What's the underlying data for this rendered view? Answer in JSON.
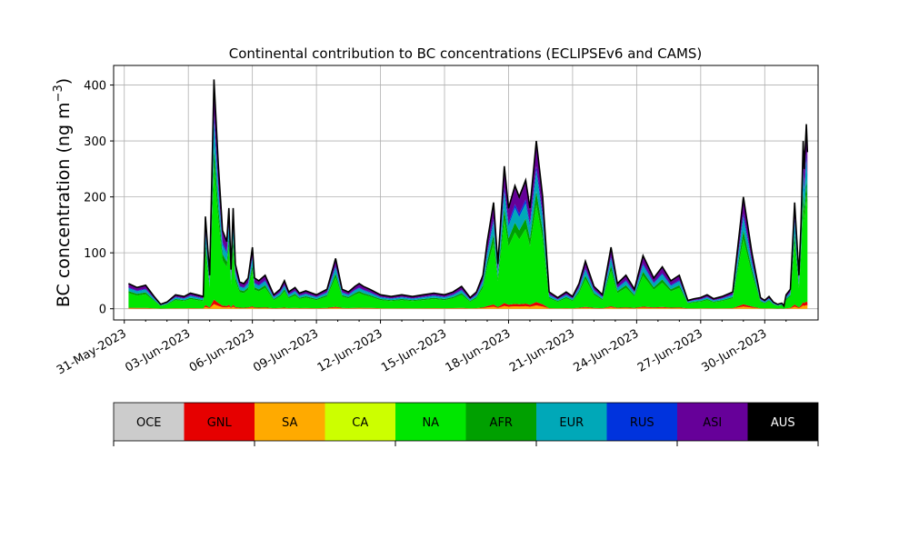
{
  "chart_data": {
    "type": "area",
    "title": "Continental contribution to BC concentrations (ECLIPSEv6 and CAMS)",
    "xlabel": "",
    "ylabel": "BC concentration (ng m",
    "ylabel_unit_exponent": "−3",
    "ylabel_close": ")",
    "ylim": [
      -20,
      435
    ],
    "yticks": [
      0,
      100,
      200,
      300,
      400
    ],
    "xlim_days": [
      -0.5,
      32.5
    ],
    "xtick_labels": [
      "31-May-2023",
      "03-Jun-2023",
      "06-Jun-2023",
      "09-Jun-2023",
      "12-Jun-2023",
      "15-Jun-2023",
      "18-Jun-2023",
      "21-Jun-2023",
      "24-Jun-2023",
      "27-Jun-2023",
      "30-Jun-2023"
    ],
    "grid": true,
    "stack_order": [
      "SA",
      "GNL",
      "NA",
      "AFR",
      "EUR",
      "RUS",
      "ASI",
      "AUS"
    ],
    "x": [
      "01-Jun",
      "02-Jun",
      "03-Jun",
      "04-Jun",
      "05-Jun",
      "06-Jun",
      "07-Jun",
      "08-Jun",
      "09-Jun",
      "10-Jun",
      "11-Jun",
      "12-Jun",
      "13-Jun",
      "14-Jun",
      "15-Jun",
      "16-Jun",
      "17-Jun",
      "18-Jun",
      "19-Jun",
      "20-Jun",
      "21-Jun",
      "22-Jun",
      "23-Jun",
      "24-Jun",
      "25-Jun",
      "26-Jun",
      "27-Jun",
      "28-Jun",
      "29-Jun",
      "30-Jun",
      "01-Jul",
      "02-Jul"
    ],
    "total_x_days": [
      0.2,
      0.6,
      1.0,
      1.4,
      1.7,
      2.0,
      2.4,
      2.8,
      3.1,
      3.4,
      3.7,
      3.8,
      4.0,
      4.2,
      4.4,
      4.6,
      4.8,
      4.9,
      5.0,
      5.1,
      5.2,
      5.4,
      5.6,
      5.8,
      6.0,
      6.1,
      6.3,
      6.6,
      7.0,
      7.3,
      7.5,
      7.7,
      8.0,
      8.2,
      8.5,
      9.0,
      9.5,
      9.9,
      10.2,
      10.5,
      10.8,
      11.0,
      11.2,
      11.5,
      12.0,
      12.5,
      13.0,
      13.5,
      14.0,
      14.5,
      15.0,
      15.4,
      15.8,
      16.2,
      16.5,
      16.8,
      17.0,
      17.3,
      17.5,
      17.8,
      18.0,
      18.3,
      18.5,
      18.8,
      19.0,
      19.3,
      19.6,
      19.9,
      20.3,
      20.7,
      21.0,
      21.3,
      21.6,
      22.0,
      22.4,
      22.8,
      23.1,
      23.5,
      23.9,
      24.3,
      24.8,
      25.2,
      25.6,
      26.0,
      26.4,
      26.7,
      27.0,
      27.3,
      27.6,
      28.0,
      28.5,
      29.0,
      29.4,
      29.8,
      30.0,
      30.2,
      30.4,
      30.6,
      30.8,
      30.9,
      31.0,
      31.2,
      31.4,
      31.6,
      31.7,
      31.8,
      31.85,
      31.95,
      32.0
    ],
    "total_values": [
      45,
      38,
      42,
      22,
      8,
      12,
      25,
      22,
      28,
      25,
      22,
      165,
      60,
      410,
      260,
      140,
      120,
      180,
      70,
      180,
      80,
      48,
      45,
      55,
      110,
      55,
      50,
      60,
      25,
      35,
      50,
      30,
      38,
      28,
      32,
      25,
      35,
      90,
      35,
      30,
      40,
      45,
      40,
      35,
      25,
      22,
      25,
      22,
      25,
      28,
      25,
      30,
      40,
      20,
      30,
      60,
      120,
      190,
      80,
      255,
      180,
      220,
      200,
      230,
      180,
      300,
      200,
      30,
      20,
      30,
      22,
      45,
      85,
      40,
      25,
      110,
      45,
      60,
      35,
      95,
      55,
      75,
      50,
      60,
      15,
      18,
      20,
      25,
      18,
      22,
      30,
      200,
      100,
      20,
      15,
      22,
      12,
      8,
      10,
      5,
      25,
      35,
      190,
      60,
      150,
      300,
      250,
      330,
      280
    ],
    "series": [
      {
        "name": "SA",
        "color": "#ffaa00",
        "share": 0.02
      },
      {
        "name": "GNL",
        "color": "#e60000",
        "share": 0.02
      },
      {
        "name": "NA",
        "color": "#00e600",
        "share": 0.58
      },
      {
        "name": "AFR",
        "color": "#00a000",
        "share": 0.08
      },
      {
        "name": "EUR",
        "color": "#00a8b8",
        "share": 0.12
      },
      {
        "name": "RUS",
        "color": "#0033dd",
        "share": 0.03
      },
      {
        "name": "ASI",
        "color": "#660099",
        "share": 0.13
      },
      {
        "name": "AUS",
        "color": "#000000",
        "share": 0.02
      }
    ]
  },
  "legend": {
    "items": [
      {
        "label": "OCE",
        "color": "#cccccc"
      },
      {
        "label": "GNL",
        "color": "#e60000"
      },
      {
        "label": "SA",
        "color": "#ffaa00"
      },
      {
        "label": "CA",
        "color": "#ccff00"
      },
      {
        "label": "NA",
        "color": "#00e600"
      },
      {
        "label": "AFR",
        "color": "#00a000"
      },
      {
        "label": "EUR",
        "color": "#00a8b8"
      },
      {
        "label": "RUS",
        "color": "#0033dd"
      },
      {
        "label": "ASI",
        "color": "#660099"
      },
      {
        "label": "AUS",
        "color": "#000000",
        "text_color": "#ffffff"
      }
    ]
  }
}
